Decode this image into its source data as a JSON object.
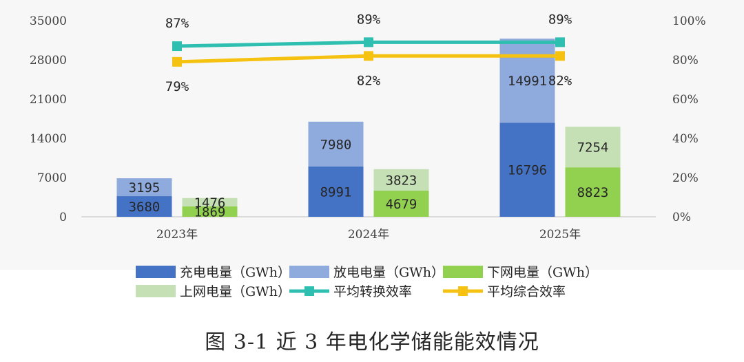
{
  "chart_data": {
    "type": "bar",
    "categories": [
      "2023年",
      "2024年",
      "2025年"
    ],
    "left_axis": {
      "ticks": [
        "0",
        "7000",
        "14000",
        "21000",
        "28000",
        "35000"
      ],
      "ylim": [
        0,
        35000
      ]
    },
    "right_axis": {
      "ticks": [
        "0%",
        "20%",
        "40%",
        "60%",
        "80%",
        "100%"
      ],
      "ylim": [
        0,
        100
      ]
    },
    "stacks": [
      {
        "name": "charge_discharge",
        "segments": [
          {
            "name": "充电电量（GWh）",
            "color": "#4472c4",
            "values": [
              3680,
              8991,
              16796
            ]
          },
          {
            "name": "放电电量（GWh）",
            "color": "#8faadc",
            "values": [
              3195,
              7980,
              14991
            ]
          }
        ]
      },
      {
        "name": "grid",
        "segments": [
          {
            "name": "下网电量（GWh）",
            "color": "#92d050",
            "values": [
              1869,
              4679,
              8823
            ]
          },
          {
            "name": "上网电量（GWh）",
            "color": "#c5e0b4",
            "values": [
              1476,
              3823,
              7254
            ]
          }
        ]
      }
    ],
    "lines": [
      {
        "name": "平均转换效率",
        "color": "#2ebfb0",
        "values": [
          87,
          89,
          89
        ],
        "labels": [
          "87%",
          "89%",
          "89%"
        ]
      },
      {
        "name": "平均综合效率",
        "color": "#f5c211",
        "values": [
          79,
          82,
          82
        ],
        "labels": [
          "79%",
          "82%",
          "82%"
        ]
      }
    ],
    "legend_position": "bottom"
  },
  "caption": "图 3-1  近 3 年电化学储能能效情况"
}
